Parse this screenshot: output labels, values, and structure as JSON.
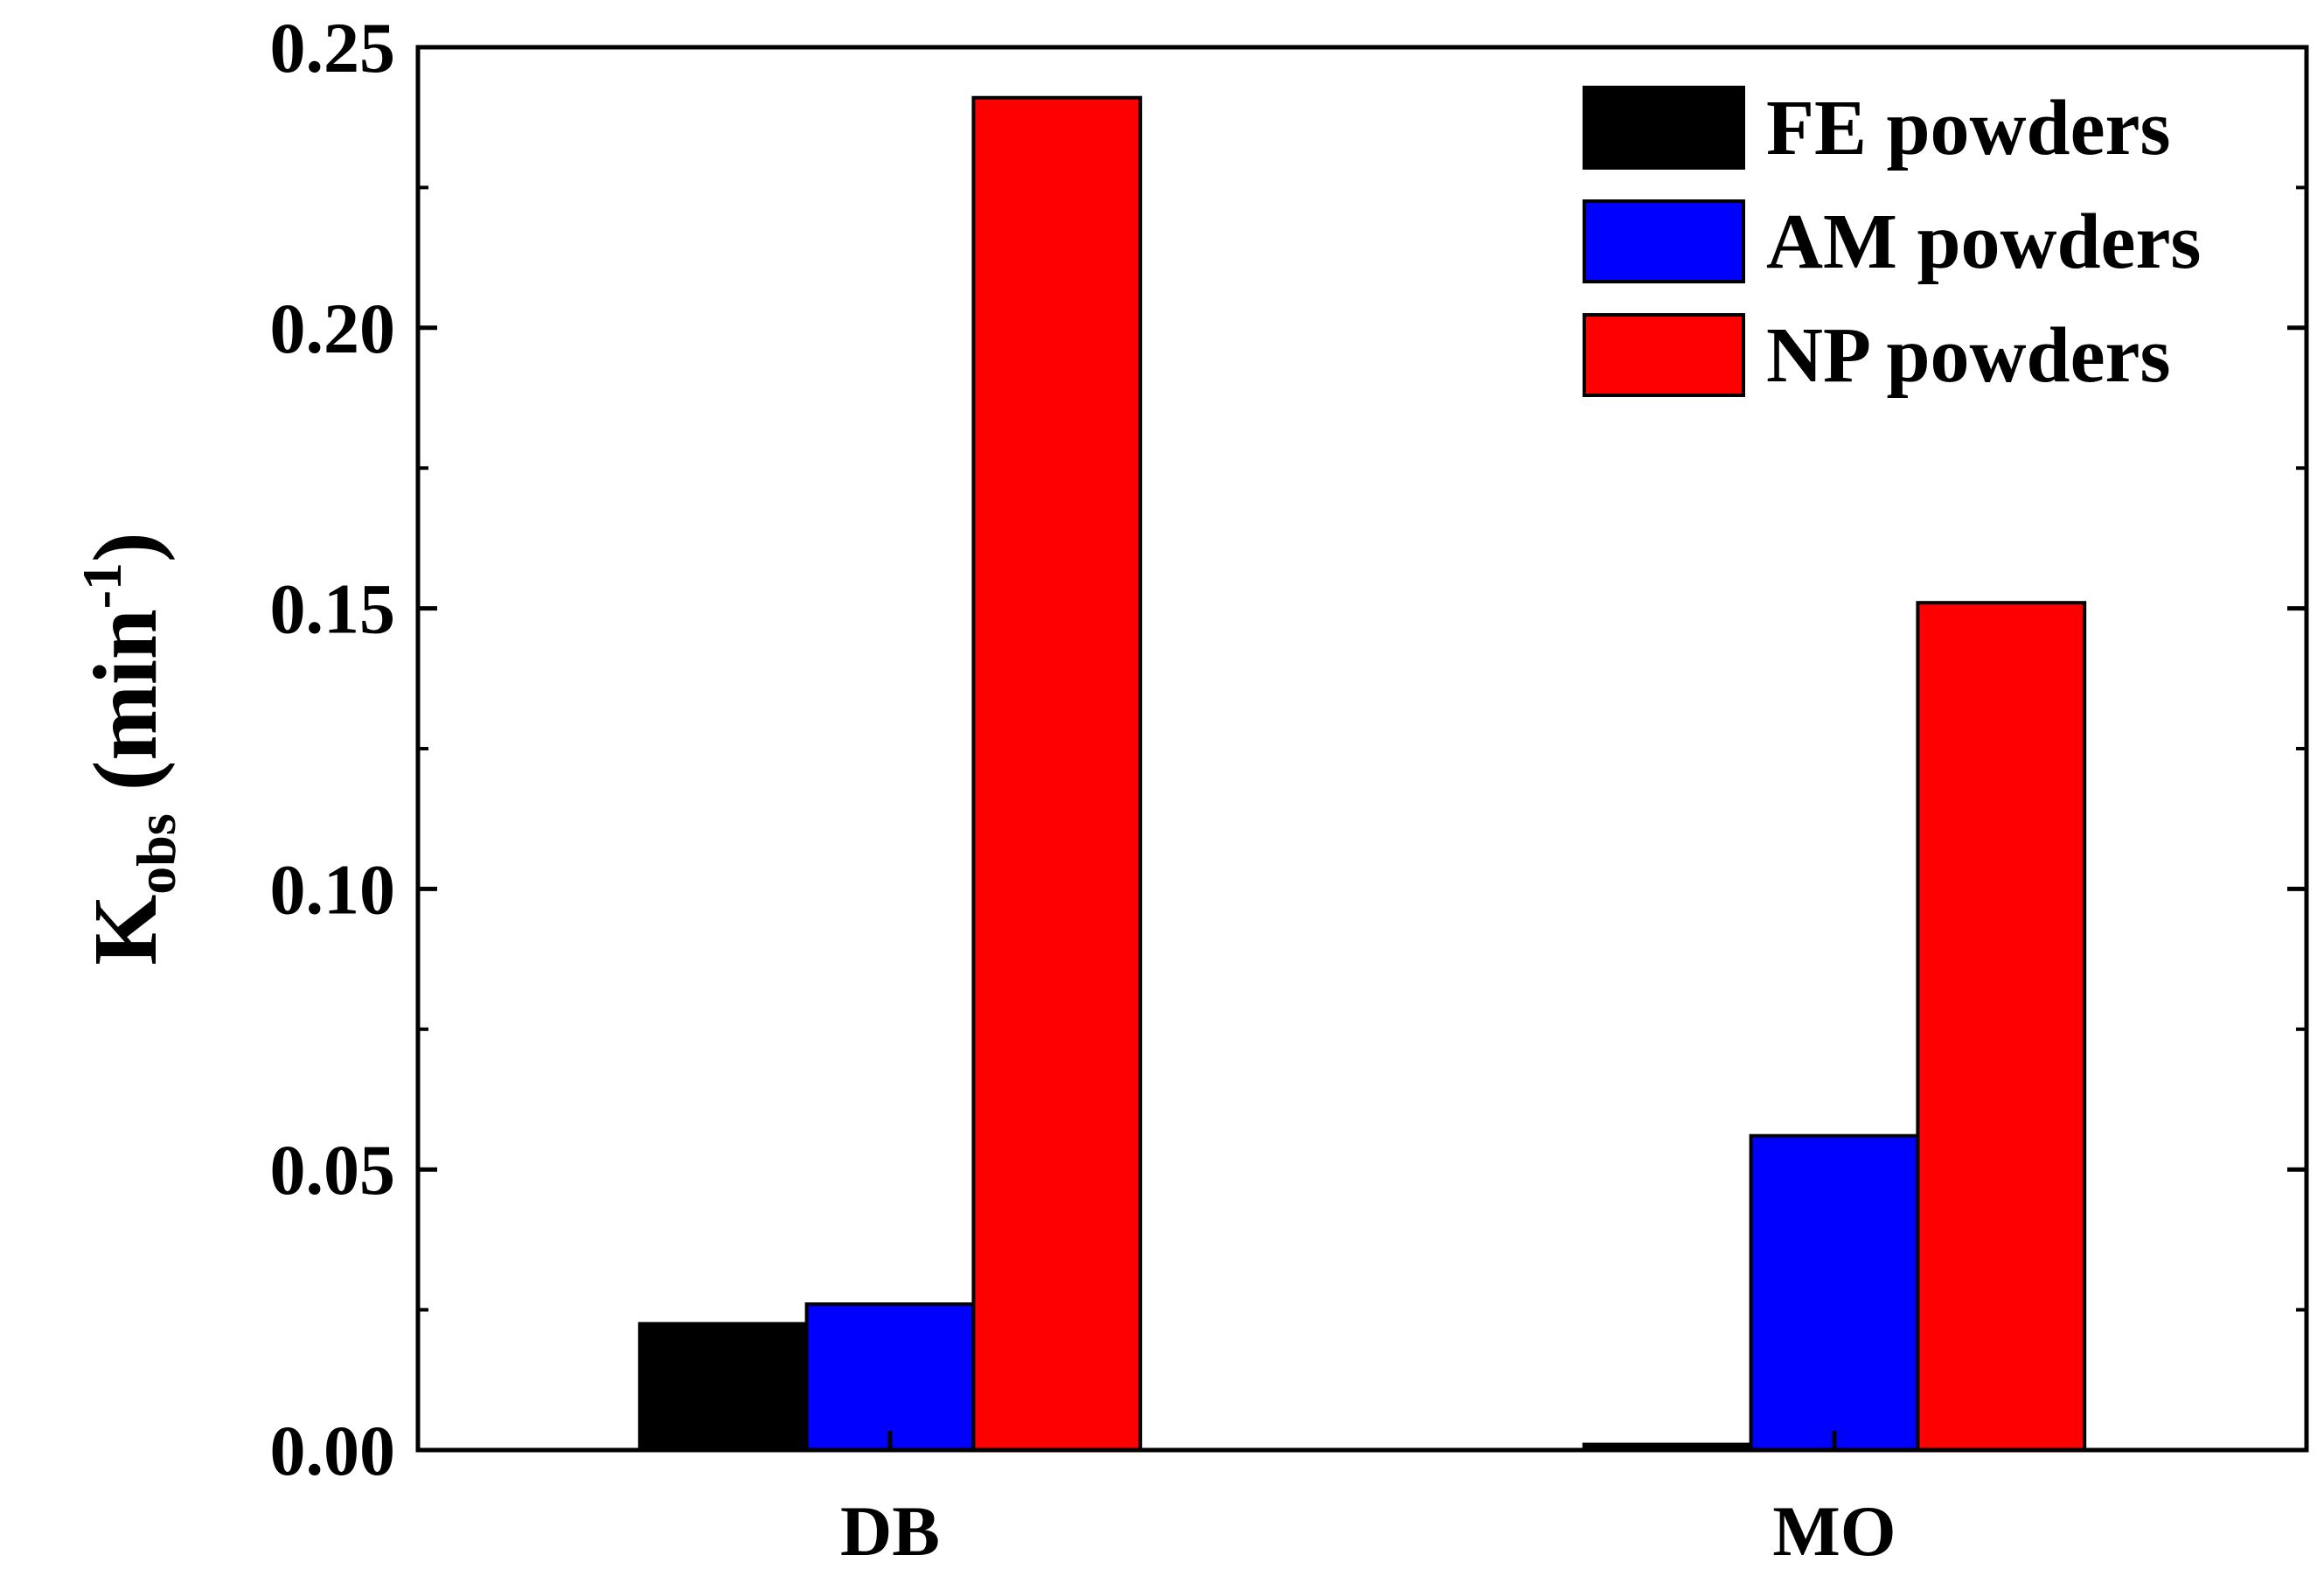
{
  "chart_data": {
    "type": "bar",
    "categories": [
      "DB",
      "MO"
    ],
    "series": [
      {
        "name": "FE powders",
        "values": [
          0.0225,
          0.001
        ],
        "color": "#000000"
      },
      {
        "name": "AM powders",
        "values": [
          0.026,
          0.056
        ],
        "color": "#0000ff"
      },
      {
        "name": "NP powders",
        "values": [
          0.241,
          0.151
        ],
        "color": "#ff0000"
      }
    ],
    "title": "",
    "xlabel": "",
    "ylabel": {
      "main": "K",
      "sub": "obs",
      "unit_open": " (min",
      "unit_sup": "-1",
      "unit_close": ")"
    },
    "ylim": [
      0,
      0.25
    ],
    "yticks": [
      "0.00",
      "0.05",
      "0.10",
      "0.15",
      "0.20",
      "0.25"
    ],
    "grid": false,
    "legend_position": "top-right"
  }
}
